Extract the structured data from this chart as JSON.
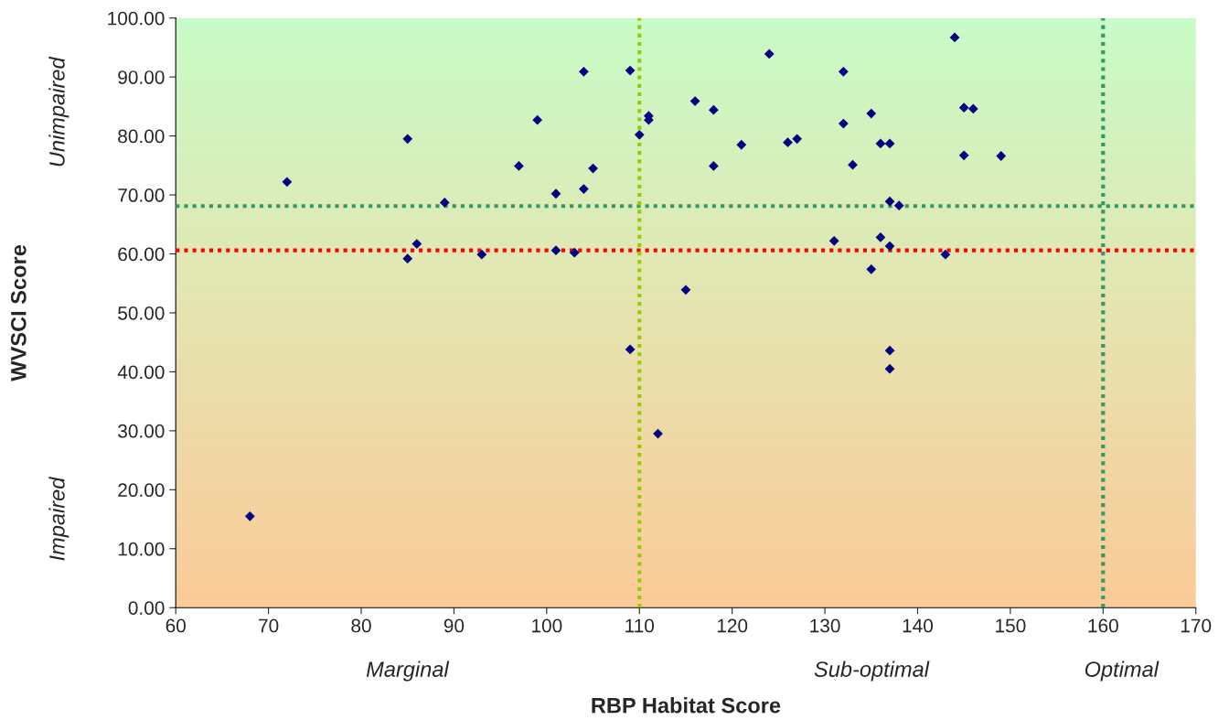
{
  "chart_data": {
    "type": "scatter",
    "xlabel": "RBP Habitat Score",
    "ylabel": "WVSCI Score",
    "x": [
      68,
      72,
      85,
      85,
      86,
      89,
      93,
      97,
      99,
      101,
      101,
      103,
      104,
      104,
      105,
      109,
      109,
      110,
      111,
      111,
      112,
      115,
      116,
      118,
      118,
      121,
      124,
      126,
      127,
      131,
      132,
      132,
      133,
      135,
      135,
      136,
      136,
      137,
      137,
      137,
      137,
      137,
      138,
      143,
      144,
      145,
      145,
      146,
      149
    ],
    "series": [
      {
        "color": "#000080",
        "values": [
          15.5,
          72.2,
          79.5,
          59.2,
          61.7,
          68.7,
          59.9,
          74.9,
          82.7,
          70.2,
          60.6,
          60.2,
          90.9,
          71.0,
          74.5,
          91.1,
          43.8,
          80.2,
          83.4,
          82.7,
          29.5,
          53.9,
          85.9,
          84.4,
          74.9,
          78.5,
          93.9,
          78.9,
          79.5,
          62.2,
          90.9,
          82.1,
          75.1,
          83.8,
          57.4,
          78.7,
          62.8,
          78.7,
          68.9,
          61.3,
          43.6,
          40.5,
          68.2,
          59.9,
          96.7,
          84.8,
          76.7,
          84.6,
          76.6
        ]
      }
    ],
    "marker": "diamond",
    "xlim": [
      60,
      170
    ],
    "xticks": [
      60,
      70,
      80,
      90,
      100,
      110,
      120,
      130,
      140,
      150,
      160,
      170
    ],
    "ylim": [
      0,
      100
    ],
    "yticks": [
      {
        "value": 0,
        "label": "0.00"
      },
      {
        "value": 10,
        "label": "10.00"
      },
      {
        "value": 20,
        "label": "20.00"
      },
      {
        "value": 30,
        "label": "30.00"
      },
      {
        "value": 40,
        "label": "40.00"
      },
      {
        "value": 50,
        "label": "50.00"
      },
      {
        "value": 60,
        "label": "60.00"
      },
      {
        "value": 70,
        "label": "70.00"
      },
      {
        "value": 80,
        "label": "80.00"
      },
      {
        "value": 90,
        "label": "90.00"
      },
      {
        "value": 100,
        "label": "100.00"
      }
    ],
    "ref_lines": [
      {
        "axis": "y",
        "value": 68.1,
        "color": "#339966",
        "line_style": "dotted"
      },
      {
        "axis": "y",
        "value": 60.6,
        "color": "#ff0000",
        "line_style": "dotted"
      },
      {
        "axis": "x",
        "value": 110,
        "color": "#99cc00",
        "line_style": "dotted"
      },
      {
        "axis": "x",
        "value": 160,
        "color": "#339966",
        "line_style": "dotted"
      }
    ],
    "annotations": [
      "Unimpaired",
      "Impaired",
      "Marginal",
      "Sub-optimal",
      "Optimal"
    ],
    "grid": false,
    "legend": false
  }
}
